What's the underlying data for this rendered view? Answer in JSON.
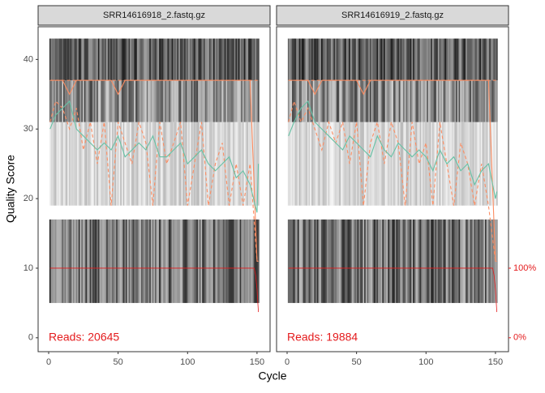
{
  "chart_data": [
    {
      "type": "line",
      "title": "SRR14616918_2.fastq.gz",
      "annotation": "Reads:  20645",
      "y_label": "Quality Score",
      "x_label": "Cycle",
      "xlim": [
        -7.6,
        159.4
      ],
      "xticks": [
        0,
        50,
        100,
        150
      ],
      "ylim": [
        -2,
        44.7
      ],
      "yticks": [
        0,
        10,
        20,
        30,
        40
      ],
      "y2lim": [
        -20,
        447
      ],
      "x": [
        1,
        5,
        10,
        15,
        20,
        25,
        30,
        35,
        40,
        45,
        50,
        55,
        60,
        65,
        70,
        75,
        80,
        85,
        90,
        95,
        100,
        105,
        110,
        115,
        120,
        125,
        130,
        135,
        140,
        145,
        150,
        151
      ],
      "series": [
        {
          "color": "#fc8d62",
          "dash": true,
          "values": [
            37,
            37,
            37,
            37,
            37,
            37,
            37,
            37,
            37,
            37,
            37,
            37,
            37,
            37,
            37,
            37,
            37,
            37,
            37,
            37,
            37,
            37,
            37,
            37,
            37,
            37,
            37,
            37,
            37,
            37,
            37,
            37
          ]
        },
        {
          "color": "#fc8d62",
          "dash": true,
          "values": [
            31,
            34,
            33,
            30,
            33,
            27,
            31,
            25,
            31,
            19,
            31,
            28,
            25,
            31,
            28,
            19,
            31,
            25,
            28,
            31,
            19,
            25,
            31,
            19,
            25,
            28,
            19,
            25,
            19,
            25,
            11,
            11
          ]
        },
        {
          "color": "#fc8d62",
          "dash": false,
          "values": [
            37,
            37,
            37,
            35,
            37,
            37,
            37,
            37,
            37,
            37,
            35,
            37,
            37,
            37,
            37,
            37,
            37,
            37,
            37,
            37,
            37,
            37,
            37,
            37,
            37,
            37,
            37,
            37,
            37,
            37,
            11,
            11
          ]
        },
        {
          "color": "#66c2a5",
          "dash": false,
          "values": [
            30,
            32,
            33,
            34,
            30,
            29,
            28,
            27,
            28,
            27,
            29,
            26,
            27,
            28,
            27,
            29,
            26,
            26,
            27,
            28,
            25,
            26,
            27,
            25,
            24,
            25,
            26,
            23,
            24,
            22,
            18,
            25
          ]
        },
        {
          "color": "#e41a1c",
          "dash": false,
          "axis": "y2",
          "x": [
            1,
            148,
            149,
            150,
            151
          ],
          "values": [
            100,
            100,
            90,
            70,
            37
          ]
        }
      ]
    },
    {
      "type": "line",
      "title": "SRR14616919_2.fastq.gz",
      "annotation": "Reads:  19884",
      "xlim": [
        -7.6,
        159.4
      ],
      "xticks": [
        0,
        50,
        100,
        150
      ],
      "ylim": [
        -2,
        44.7
      ],
      "y2lim": [
        -20,
        447
      ],
      "y2ticks": [
        {
          "value": 0,
          "label": "0%"
        },
        {
          "value": 100,
          "label": "100%"
        }
      ],
      "x": [
        1,
        5,
        10,
        15,
        20,
        25,
        30,
        35,
        40,
        45,
        50,
        55,
        60,
        65,
        70,
        75,
        80,
        85,
        90,
        95,
        100,
        105,
        110,
        115,
        120,
        125,
        130,
        135,
        140,
        145,
        150,
        151
      ],
      "series": [
        {
          "color": "#fc8d62",
          "dash": true,
          "values": [
            37,
            37,
            37,
            37,
            37,
            37,
            37,
            37,
            37,
            37,
            37,
            37,
            37,
            37,
            37,
            37,
            37,
            37,
            37,
            37,
            37,
            37,
            37,
            37,
            37,
            37,
            37,
            37,
            37,
            37,
            37,
            37
          ]
        },
        {
          "color": "#fc8d62",
          "dash": true,
          "values": [
            31,
            34,
            31,
            33,
            30,
            27,
            31,
            28,
            31,
            25,
            31,
            19,
            28,
            31,
            25,
            31,
            28,
            19,
            31,
            25,
            28,
            19,
            31,
            25,
            19,
            28,
            25,
            19,
            25,
            19,
            11,
            11
          ]
        },
        {
          "color": "#fc8d62",
          "dash": false,
          "values": [
            37,
            37,
            37,
            37,
            35,
            37,
            37,
            37,
            37,
            37,
            37,
            35,
            37,
            37,
            37,
            37,
            37,
            37,
            37,
            37,
            37,
            37,
            37,
            37,
            37,
            37,
            37,
            37,
            37,
            37,
            11,
            11
          ]
        },
        {
          "color": "#66c2a5",
          "dash": false,
          "values": [
            29,
            31,
            33,
            34,
            31,
            30,
            29,
            28,
            27,
            29,
            28,
            27,
            26,
            29,
            27,
            26,
            28,
            27,
            26,
            27,
            26,
            24,
            27,
            25,
            26,
            24,
            25,
            22,
            24,
            25,
            20,
            21
          ]
        },
        {
          "color": "#e41a1c",
          "dash": false,
          "axis": "y2",
          "x": [
            1,
            148,
            149,
            150,
            151
          ],
          "values": [
            100,
            100,
            90,
            70,
            37
          ]
        }
      ]
    }
  ]
}
